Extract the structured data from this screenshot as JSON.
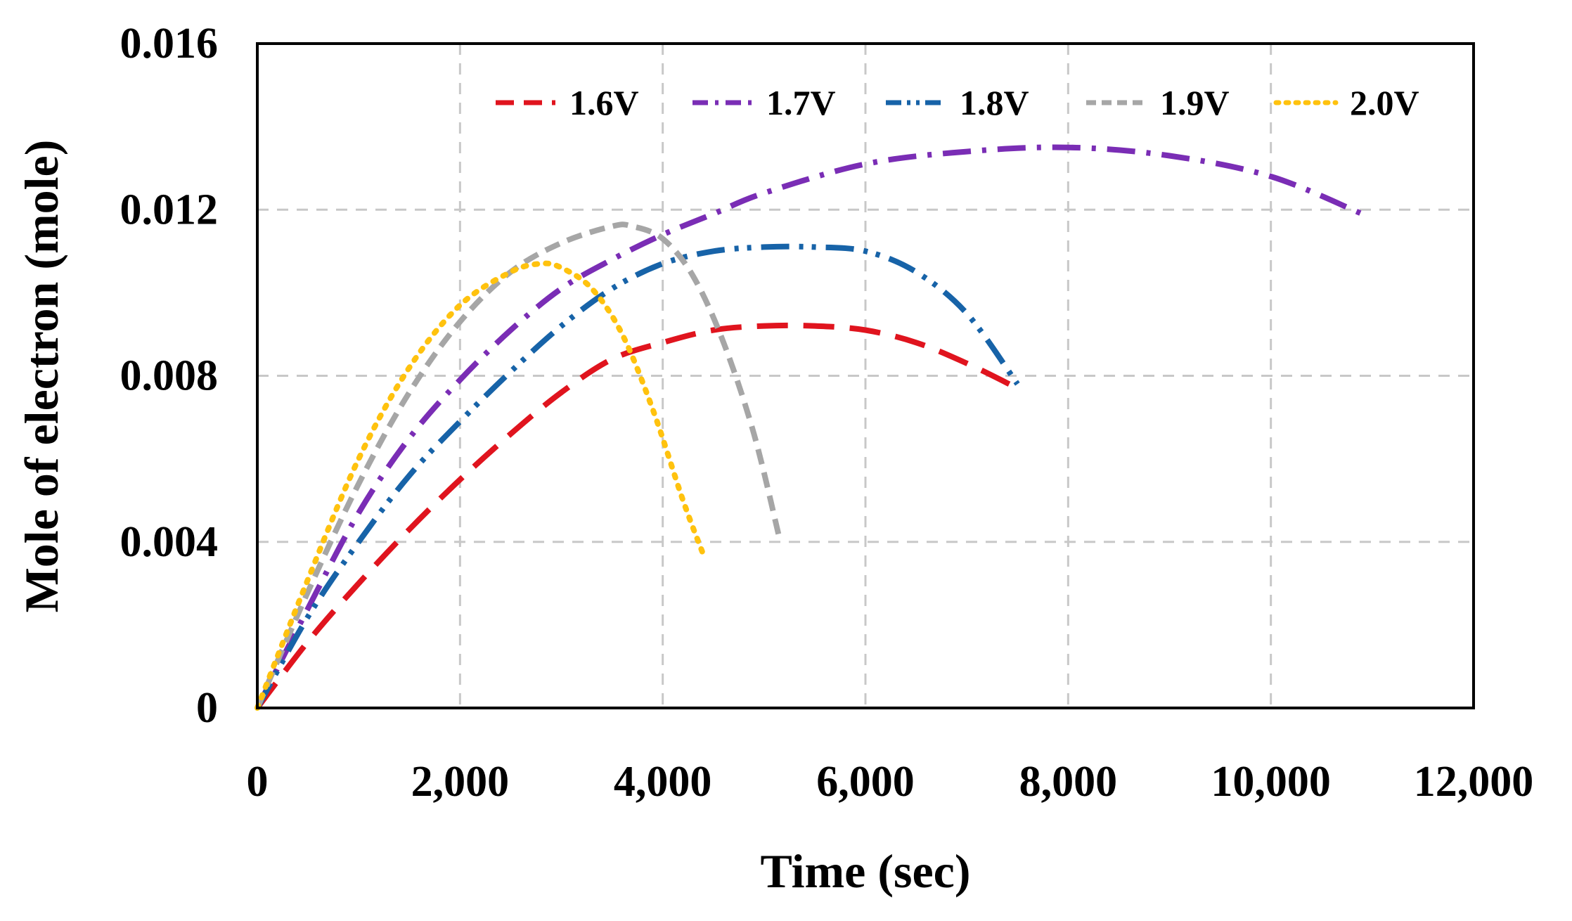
{
  "chart_data": {
    "type": "line",
    "title": "",
    "xlabel": "Time (sec)",
    "ylabel": "Mole of electron (mole)",
    "xlim": [
      0,
      12000
    ],
    "ylim": [
      0,
      0.016
    ],
    "grid": true,
    "legend_position": "top-right",
    "x_ticks": [
      0,
      2000,
      4000,
      6000,
      8000,
      10000,
      12000
    ],
    "x_tick_labels": [
      "0",
      "2,000",
      "4,000",
      "6,000",
      "8,000",
      "10,000",
      "12,000"
    ],
    "y_ticks": [
      0,
      0.004,
      0.008,
      0.012,
      0.016
    ],
    "y_tick_labels": [
      "0",
      "0.004",
      "0.008",
      "0.012",
      "0.016"
    ],
    "series": [
      {
        "name": "1.6V",
        "color": "#e0141e",
        "dash": "long-dash",
        "x": [
          0,
          500,
          1000,
          1500,
          2000,
          2500,
          3000,
          3500,
          4000,
          4500,
          5000,
          5500,
          6000,
          6500,
          7000,
          7500
        ],
        "y": [
          0,
          0.0016,
          0.003,
          0.0043,
          0.0055,
          0.0066,
          0.0076,
          0.0084,
          0.0088,
          0.0091,
          0.0092,
          0.0092,
          0.0091,
          0.0088,
          0.0083,
          0.0077
        ]
      },
      {
        "name": "1.7V",
        "color": "#7a2db5",
        "dash": "dash-dot",
        "x": [
          0,
          500,
          1000,
          1500,
          2000,
          2500,
          3000,
          3500,
          4000,
          4500,
          5000,
          6000,
          7000,
          8000,
          9000,
          10000,
          10900
        ],
        "y": [
          0,
          0.0024,
          0.0047,
          0.0065,
          0.0079,
          0.0091,
          0.0101,
          0.0108,
          0.0114,
          0.0119,
          0.0124,
          0.0131,
          0.0134,
          0.0135,
          0.0133,
          0.0128,
          0.0119
        ]
      },
      {
        "name": "1.8V",
        "color": "#1763a8",
        "dash": "dash-dot-dot",
        "x": [
          0,
          500,
          1000,
          1500,
          2000,
          2500,
          3000,
          3500,
          4000,
          4500,
          5000,
          5500,
          6000,
          6500,
          7000,
          7500
        ],
        "y": [
          0,
          0.0022,
          0.004,
          0.0056,
          0.0069,
          0.0081,
          0.0092,
          0.0101,
          0.0107,
          0.011,
          0.0111,
          0.0111,
          0.011,
          0.0105,
          0.0095,
          0.0078
        ]
      },
      {
        "name": "1.9V",
        "color": "#a6a6a6",
        "dash": "short-dash",
        "x": [
          0,
          500,
          1000,
          1500,
          2000,
          2500,
          3000,
          3500,
          3700,
          4000,
          4300,
          4600,
          4900,
          5150
        ],
        "y": [
          0,
          0.0028,
          0.0054,
          0.0076,
          0.0093,
          0.0105,
          0.0112,
          0.0116,
          0.0116,
          0.0113,
          0.0104,
          0.0088,
          0.0066,
          0.0041
        ]
      },
      {
        "name": "2.0V",
        "color": "#ffc20e",
        "dash": "dotted",
        "x": [
          0,
          500,
          1000,
          1500,
          2000,
          2500,
          2800,
          3000,
          3300,
          3600,
          3900,
          4200,
          4400
        ],
        "y": [
          0,
          0.0031,
          0.006,
          0.0082,
          0.0097,
          0.0105,
          0.0107,
          0.0106,
          0.0101,
          0.009,
          0.0072,
          0.005,
          0.0037
        ]
      }
    ]
  }
}
